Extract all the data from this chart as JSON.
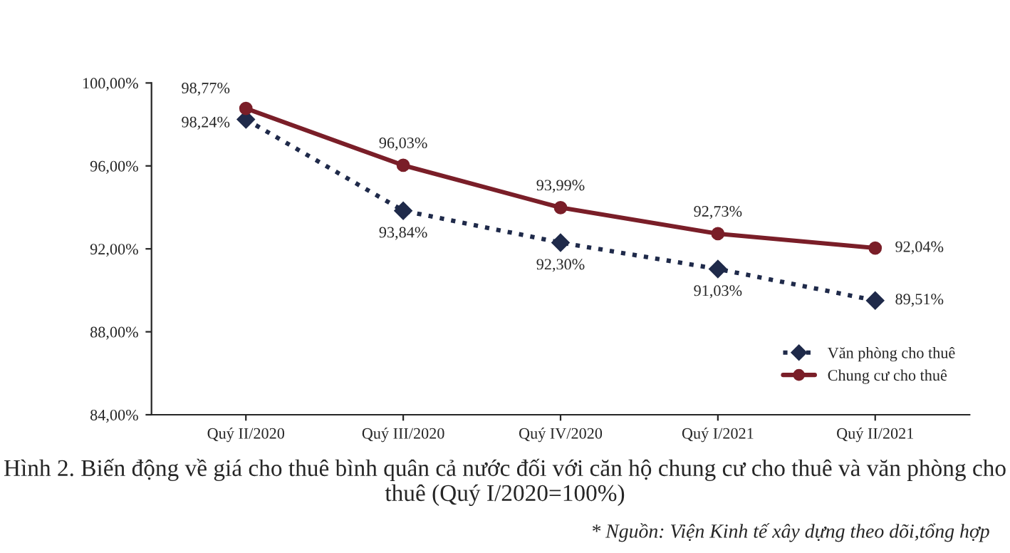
{
  "chart_data": {
    "type": "line",
    "title": "Hình 2. Biến động về giá cho thuê bình quân cả nước đối với căn hộ chung cư cho thuê và văn phòng cho thuê (Quý I/2020=100%)",
    "annotations": [
      "* Nguồn: Viện Kinh tế xây dựng theo dõi,tổng hợp"
    ],
    "categories": [
      "Quý II/2020",
      "Quý III/2020",
      "Quý IV/2020",
      "Quý I/2021",
      "Quý II/2021"
    ],
    "series": [
      {
        "name": "Văn phòng cho thuê",
        "color": "#1f2a4a",
        "marker": "diamond",
        "line_style": "dotted",
        "values": [
          98.24,
          93.84,
          92.3,
          91.03,
          89.51
        ],
        "value_labels": [
          "98,24%",
          "93,84%",
          "92,30%",
          "91,03%",
          "89,51%"
        ]
      },
      {
        "name": "Chung cư cho thuê",
        "color": "#7a1e28",
        "marker": "circle",
        "line_style": "solid",
        "values": [
          98.77,
          96.03,
          93.99,
          92.73,
          92.04
        ],
        "value_labels": [
          "98,77%",
          "96,03%",
          "93,99%",
          "92,73%",
          "92,04%"
        ]
      }
    ],
    "ylim": [
      84,
      100
    ],
    "yticks": [
      {
        "value": 84,
        "label": "84,00%"
      },
      {
        "value": 88,
        "label": "88,00%"
      },
      {
        "value": 92,
        "label": "92,00%"
      },
      {
        "value": 96,
        "label": "96,00%"
      },
      {
        "value": 100,
        "label": "100,00%"
      }
    ],
    "grid": false,
    "legend": "bottom right"
  }
}
